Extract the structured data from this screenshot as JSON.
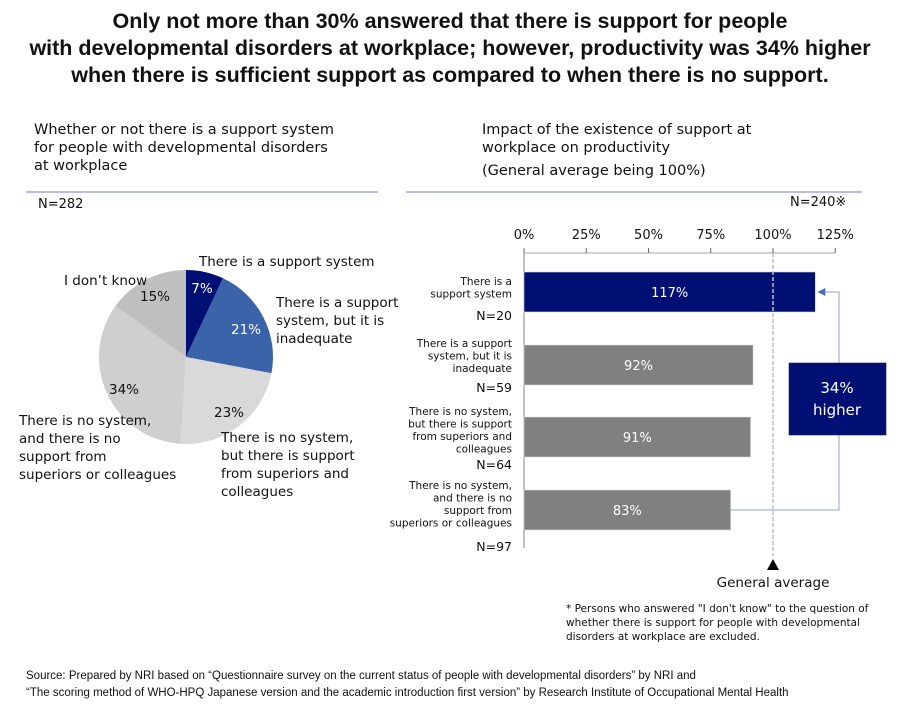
{
  "headline": {
    "lines": [
      "Only not more than 30% answered that there is support for people",
      "with developmental disorders at workplace; however, productivity was 34% higher",
      "when there is sufficient support as compared to when there is no support."
    ]
  },
  "left_panel": {
    "title_lines": [
      "Whether or not there is a support system",
      "for people with developmental disorders",
      "at workplace"
    ],
    "n_label": "N=282"
  },
  "right_panel": {
    "title_lines": [
      "Impact of the existence of support at",
      "workplace on productivity",
      "(General average being 100%)"
    ],
    "n_label": "N=240※"
  },
  "colors": {
    "navy": "#000f73",
    "medium_blue": "#3a63aa",
    "light_gray": "#d9d9d9",
    "mid_gray": "#cfcfcf",
    "dark_gray": "#bfbfbf",
    "bar_gray": "#808080",
    "connector": "#8fa6cf",
    "divider": "#b9bde0"
  },
  "chart_data": [
    {
      "type": "pie",
      "title": "Whether or not there is a support system for people with developmental disorders at workplace",
      "n": "N=282",
      "start_angle": "12 o'clock, clockwise",
      "slices": [
        {
          "label": "There is a support system",
          "label_lines": [
            "There is a support system"
          ],
          "value": 7,
          "display": "7%",
          "color": "#000f73",
          "text_color": "#ffffff"
        },
        {
          "label": "There is a support system, but it is inadequate",
          "label_lines": [
            "There is a support",
            "system, but it is",
            "inadequate"
          ],
          "value": 21,
          "display": "21%",
          "color": "#3a63aa",
          "text_color": "#ffffff"
        },
        {
          "label": "There is no system, but there is support from superiors and colleagues",
          "label_lines": [
            "There is no system,",
            "but there is support",
            "from superiors and",
            "colleagues"
          ],
          "value": 23,
          "display": "23%",
          "color": "#d9d9d9",
          "text_color": "#111111"
        },
        {
          "label": "There is no system, and there is no support from superiors or colleagues",
          "label_lines": [
            "There is no system,",
            "and there is no",
            "support from",
            "superiors or colleagues"
          ],
          "value": 34,
          "display": "34%",
          "color": "#cfcfcf",
          "text_color": "#111111"
        },
        {
          "label": "I don’t know",
          "label_lines": [
            "I don’t know"
          ],
          "value": 15,
          "display": "15%",
          "color": "#bfbfbf",
          "text_color": "#111111"
        }
      ]
    },
    {
      "type": "bar",
      "orientation": "horizontal",
      "title": "Impact of the existence of support at workplace on productivity (General average being 100%)",
      "n": "N=240※",
      "xlim": [
        0,
        125
      ],
      "x_ticks": [
        0,
        25,
        50,
        75,
        100,
        125
      ],
      "x_tick_labels": [
        "0%",
        "25%",
        "50%",
        "75%",
        "100%",
        "125%"
      ],
      "x_axis_position": "top",
      "reference_line": {
        "value": 100,
        "label": "General average",
        "style": "dashed"
      },
      "categories": [
        {
          "label_lines": [
            "There is a",
            "support system"
          ],
          "n": "N=20"
        },
        {
          "label_lines": [
            "There is a support",
            "system, but it is",
            "inadequate"
          ],
          "n": "N=59"
        },
        {
          "label_lines": [
            "There is no system,",
            "but there is support",
            "from superiors and",
            "colleagues"
          ],
          "n": "N=64"
        },
        {
          "label_lines": [
            "There is no system,",
            "and there is no",
            "support from",
            "superiors or colleagues"
          ],
          "n": "N=97"
        }
      ],
      "values": [
        117,
        92,
        91,
        83
      ],
      "value_labels": [
        "117%",
        "92%",
        "91%",
        "83%"
      ],
      "bar_colors": [
        "#000f73",
        "#808080",
        "#808080",
        "#808080"
      ],
      "annotation": {
        "lines": [
          "34%",
          "higher"
        ],
        "from_category": 3,
        "to_category": 0,
        "color": "#000f73"
      }
    }
  ],
  "footnote": "* Persons who answered \"I don't know\" to the question of whether there is support for people with developmental disorders at workplace are excluded.",
  "source": {
    "lines": [
      "Source: Prepared by NRI based on “Questionnaire survey on the current status of people with developmental disorders” by NRI and",
      "“The scoring method of WHO-HPQ Japanese version and the academic introduction first version” by Research Institute of Occupational Mental Health"
    ]
  }
}
